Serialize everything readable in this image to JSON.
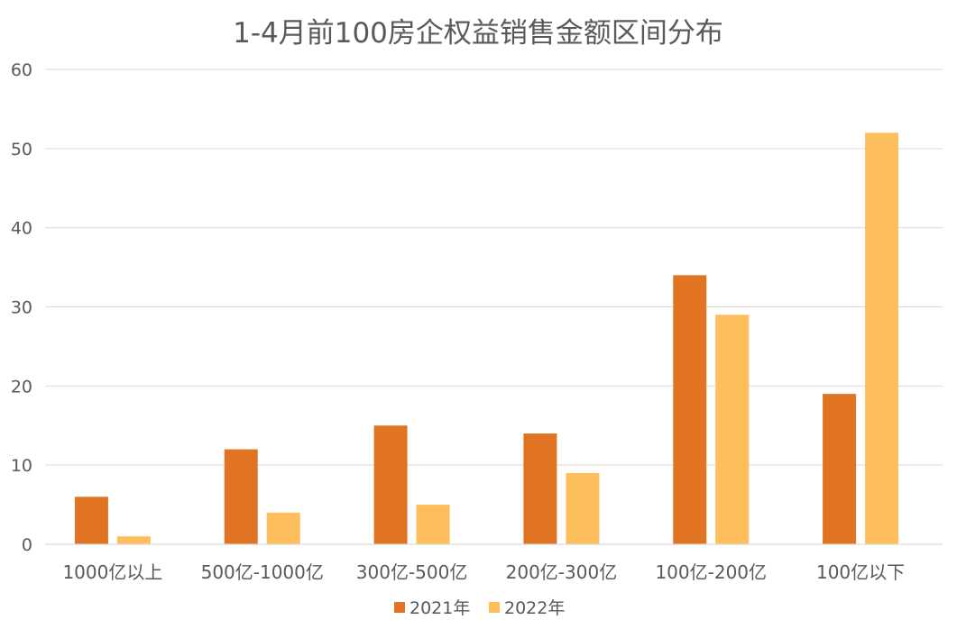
{
  "chart_data": {
    "type": "bar",
    "title": "1-4月前100房企权益销售金额区间分布",
    "xlabel": "",
    "ylabel": "",
    "categories": [
      "1000亿以上",
      "500亿-1000亿",
      "300亿-500亿",
      "200亿-300亿",
      "100亿-200亿",
      "100亿以下"
    ],
    "series": [
      {
        "name": "2021年",
        "color": "#E07423",
        "values": [
          6,
          12,
          15,
          14,
          34,
          19
        ]
      },
      {
        "name": "2022年",
        "color": "#FFBE5C",
        "values": [
          1,
          4,
          5,
          9,
          29,
          52
        ]
      }
    ],
    "ylim": [
      0,
      60
    ],
    "yticks": [
      0,
      10,
      20,
      30,
      40,
      50,
      60
    ],
    "grid": true,
    "legend": "bottom"
  }
}
